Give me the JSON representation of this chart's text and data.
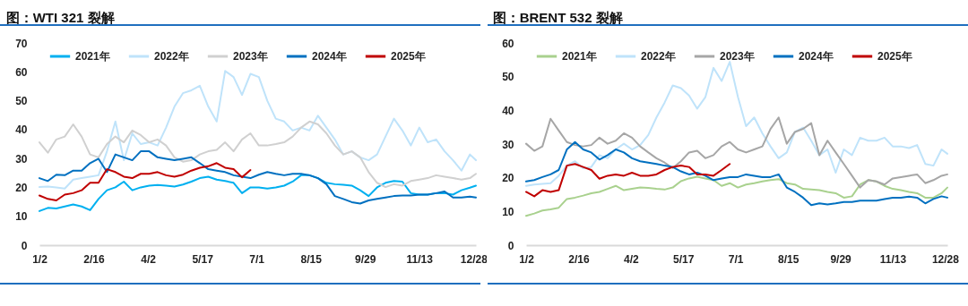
{
  "chart_data": [
    {
      "type": "line",
      "title": "图：WTI 321 裂解",
      "legend": "top",
      "x": [
        "--01-02",
        "--01-09",
        "--01-16",
        "--01-23",
        "--01-30",
        "--02-06",
        "--02-13",
        "--02-20",
        "--02-27",
        "--03-06",
        "--03-13",
        "--03-20",
        "--03-27",
        "--04-03",
        "--04-10",
        "--04-17",
        "--04-24",
        "--05-01",
        "--05-08",
        "--05-15",
        "--05-22",
        "--05-29",
        "--06-05",
        "--06-12",
        "--06-19",
        "--06-26",
        "--07-03",
        "--07-10",
        "--07-17",
        "--07-24",
        "--07-31",
        "--08-07",
        "--08-14",
        "--08-21",
        "--08-28",
        "--09-04",
        "--09-11",
        "--09-18",
        "--09-25",
        "--10-02",
        "--10-09",
        "--10-16",
        "--10-23",
        "--10-30",
        "--11-06",
        "--11-13",
        "--11-20",
        "--11-27",
        "--12-04",
        "--12-11",
        "--12-18",
        "--12-25",
        "--12-30"
      ],
      "xlim": [
        "--01-02",
        "--12-30"
      ],
      "xticks": [
        {
          "value": "--01-02",
          "label": "1/2"
        },
        {
          "value": "--02-16",
          "label": "2/16"
        },
        {
          "value": "--04-02",
          "label": "4/2"
        },
        {
          "value": "--05-17",
          "label": "5/17"
        },
        {
          "value": "--07-01",
          "label": "7/1"
        },
        {
          "value": "--08-15",
          "label": "8/15"
        },
        {
          "value": "--09-29",
          "label": "9/29"
        },
        {
          "value": "--11-13",
          "label": "11/13"
        },
        {
          "value": "--12-28",
          "label": "12/28"
        }
      ],
      "ylim": [
        0,
        70
      ],
      "yticks": [
        0,
        10,
        20,
        30,
        40,
        50,
        60,
        70
      ],
      "series": [
        {
          "name": "2021年",
          "color": "#00b0f0",
          "values": [
            11.8,
            12.9,
            12.7,
            13.4,
            14.1,
            13.4,
            12.1,
            16,
            19,
            20,
            22,
            19,
            20,
            20.6,
            20.8,
            20.6,
            20.3,
            21,
            22,
            23.2,
            23.7,
            22.7,
            22.2,
            21.6,
            18,
            20,
            20,
            19.6,
            20,
            20.6,
            22,
            24.2,
            24.2,
            23.2,
            21.6,
            21.1,
            20.9,
            20.6,
            19,
            17,
            20,
            21.6,
            22.2,
            22,
            18,
            17.5,
            17.5,
            18,
            18,
            17.5,
            19,
            19.9,
            20.6
          ]
        },
        {
          "name": "2022年",
          "color": "#bfe3fa",
          "values": [
            20.1,
            20.3,
            20,
            19.6,
            22.7,
            23.2,
            23.7,
            24.2,
            32.5,
            42.8,
            29.4,
            38.7,
            35,
            35.6,
            34.5,
            40.7,
            48,
            52.6,
            53.6,
            55.2,
            48,
            42.8,
            60.3,
            58.2,
            52,
            59.3,
            58.2,
            50,
            43.8,
            42.8,
            39.7,
            40.7,
            39.7,
            44.8,
            40.7,
            36.6,
            31.4,
            32.5,
            30.4,
            29.4,
            31.4,
            37.6,
            43.8,
            39.7,
            34.5,
            40.7,
            35.6,
            36.6,
            32.5,
            29.4,
            25.8,
            31.4,
            29.4
          ]
        },
        {
          "name": "2023年",
          "color": "#d0d0d0",
          "values": [
            35.6,
            32,
            36.6,
            37.6,
            41.8,
            37.6,
            31.4,
            30.4,
            35,
            37.6,
            35.6,
            39.7,
            38.1,
            35.6,
            36.6,
            34.5,
            30.4,
            28.9,
            29.4,
            31.4,
            32.5,
            33,
            35.6,
            32.5,
            36.6,
            38.7,
            34.5,
            34.5,
            35,
            35.6,
            37.6,
            40.7,
            42.8,
            41.8,
            38.7,
            34.5,
            31.4,
            32.5,
            30.4,
            25.3,
            21.6,
            20.1,
            21.1,
            20.6,
            22.2,
            22.7,
            23.2,
            24.2,
            23.7,
            23.2,
            22.7,
            23.2,
            24.7
          ]
        },
        {
          "name": "2024年",
          "color": "#0070c0",
          "values": [
            23.2,
            22.2,
            24.4,
            24.2,
            25.8,
            25.8,
            28.4,
            29.9,
            25.3,
            31.4,
            30.4,
            29.4,
            32.5,
            32.5,
            30.4,
            29.9,
            29.4,
            29.9,
            30.4,
            28.4,
            26.3,
            25.8,
            25.3,
            24.2,
            23.7,
            23.2,
            24.4,
            25.3,
            24.7,
            24.2,
            24.7,
            24.7,
            24.2,
            23.2,
            21.1,
            17,
            16,
            14.9,
            14.4,
            15.5,
            16,
            16.5,
            17,
            17.2,
            17.2,
            17.5,
            17.5,
            18,
            18.6,
            16.5,
            16.5,
            16.8,
            16.5
          ]
        },
        {
          "name": "2025年",
          "color": "#c00000",
          "values": [
            17.2,
            16,
            15.5,
            17.5,
            18,
            19,
            21.6,
            21.6,
            26.3,
            25.3,
            23.7,
            23.2,
            24.7,
            24.7,
            25.3,
            24.2,
            23.7,
            24.4,
            25.8,
            26.8,
            27.3,
            28.4,
            26.8,
            26.3,
            23.5,
            26,
            null,
            null,
            null,
            null,
            null,
            null,
            null,
            null,
            null,
            null,
            null,
            null,
            null,
            null,
            null,
            null,
            null,
            null,
            null,
            null,
            null,
            null,
            null,
            null,
            null,
            null,
            null
          ]
        }
      ]
    },
    {
      "type": "line",
      "title": "图：BRENT 532 裂解",
      "legend": "top",
      "x": [
        "--01-02",
        "--01-09",
        "--01-16",
        "--01-23",
        "--01-30",
        "--02-06",
        "--02-13",
        "--02-20",
        "--02-27",
        "--03-06",
        "--03-13",
        "--03-20",
        "--03-27",
        "--04-03",
        "--04-10",
        "--04-17",
        "--04-24",
        "--05-01",
        "--05-08",
        "--05-15",
        "--05-22",
        "--05-29",
        "--06-05",
        "--06-12",
        "--06-19",
        "--06-26",
        "--07-03",
        "--07-10",
        "--07-17",
        "--07-24",
        "--07-31",
        "--08-07",
        "--08-14",
        "--08-21",
        "--08-28",
        "--09-04",
        "--09-11",
        "--09-18",
        "--09-25",
        "--10-02",
        "--10-09",
        "--10-16",
        "--10-23",
        "--10-30",
        "--11-06",
        "--11-13",
        "--11-20",
        "--11-27",
        "--12-04",
        "--12-11",
        "--12-18",
        "--12-25",
        "--12-30"
      ],
      "xlim": [
        "--01-02",
        "--12-30"
      ],
      "xticks": [
        {
          "value": "--01-02",
          "label": "1/2"
        },
        {
          "value": "--02-16",
          "label": "2/16"
        },
        {
          "value": "--04-02",
          "label": "4/2"
        },
        {
          "value": "--05-17",
          "label": "5/17"
        },
        {
          "value": "--07-01",
          "label": "7/1"
        },
        {
          "value": "--08-15",
          "label": "8/15"
        },
        {
          "value": "--09-29",
          "label": "9/29"
        },
        {
          "value": "--11-13",
          "label": "11/13"
        },
        {
          "value": "--12-28",
          "label": "12/28"
        }
      ],
      "ylim": [
        0,
        60
      ],
      "yticks": [
        0,
        10,
        20,
        30,
        40,
        50,
        60
      ],
      "series": [
        {
          "name": "2021年",
          "color": "#a9d18e",
          "values": [
            8.7,
            9.4,
            10.3,
            10.6,
            11.1,
            13.7,
            14.1,
            14.7,
            15.4,
            15.8,
            16.7,
            17.6,
            16.3,
            16.7,
            17.1,
            17,
            16.7,
            16.5,
            17.1,
            19,
            19.8,
            20.3,
            19.8,
            19.3,
            17.6,
            18.4,
            17.1,
            18,
            18.4,
            18.9,
            19.3,
            19.6,
            18.4,
            18,
            16.7,
            16.5,
            16.3,
            15.8,
            15.4,
            14.1,
            14.5,
            18,
            19.3,
            18.9,
            17.6,
            16.7,
            16.3,
            15.8,
            15.4,
            14.1,
            14.1,
            15.4,
            17.1
          ]
        },
        {
          "name": "2022年",
          "color": "#bfe3fa",
          "values": [
            17.6,
            18,
            18.2,
            18.4,
            20.6,
            23.6,
            24.9,
            22.8,
            23.2,
            26.7,
            25.8,
            28.4,
            30.1,
            28.4,
            29.7,
            32.7,
            37.9,
            42.3,
            47.4,
            46.6,
            44.4,
            40.5,
            43.9,
            52.6,
            48.7,
            54.4,
            44,
            35.3,
            37.9,
            33.2,
            29.3,
            25.8,
            27.5,
            33.6,
            34.9,
            31,
            26.7,
            28.4,
            21.5,
            28.4,
            26.7,
            31.9,
            31,
            31,
            31.9,
            29.3,
            29.3,
            28.8,
            29.7,
            24.1,
            23.6,
            28.4,
            27.1
          ]
        },
        {
          "name": "2023年",
          "color": "#a6a6a6",
          "values": [
            30.1,
            28,
            29.3,
            37.5,
            34,
            30.6,
            29.7,
            29.3,
            29.7,
            31.9,
            30.1,
            31,
            33.2,
            31.9,
            29.3,
            27.5,
            25.8,
            24.5,
            22.9,
            24.9,
            27.5,
            28,
            25.8,
            26.7,
            29.3,
            30.6,
            28.4,
            27.5,
            28.4,
            29.3,
            34.5,
            37.9,
            30.1,
            33.6,
            34.5,
            36.2,
            26.7,
            31,
            27.5,
            24.1,
            20.6,
            17.1,
            19.3,
            18.9,
            18,
            19.8,
            20.2,
            20.6,
            21,
            18.4,
            19.3,
            20.6,
            21
          ]
        },
        {
          "name": "2024年",
          "color": "#0070c0",
          "values": [
            18.9,
            19.3,
            20.2,
            21,
            22.3,
            28.4,
            30.6,
            28.4,
            27.5,
            25.4,
            26.7,
            28.4,
            27.5,
            25.8,
            24.9,
            24.5,
            24.1,
            23.6,
            23.2,
            21.9,
            21,
            21.5,
            20.6,
            19.3,
            19.8,
            20.2,
            20.2,
            21,
            20.6,
            20.2,
            20.2,
            21,
            17.1,
            15.8,
            14.1,
            11.9,
            12.4,
            12.1,
            12.4,
            12.8,
            12.8,
            13.2,
            13.2,
            13.2,
            13.7,
            14.1,
            14.1,
            14.4,
            14.1,
            12.4,
            13.7,
            14.5,
            14.1
          ]
        },
        {
          "name": "2025年",
          "color": "#c00000",
          "values": [
            15.8,
            14.5,
            16.3,
            15.8,
            16.3,
            23.6,
            24.1,
            23.2,
            22.3,
            19.7,
            20.6,
            21,
            20.6,
            21.5,
            20.6,
            20.6,
            21,
            22.3,
            23.2,
            23.6,
            23.2,
            21,
            21,
            20.6,
            22.3,
            24.1,
            null,
            null,
            null,
            null,
            null,
            null,
            null,
            null,
            null,
            null,
            null,
            null,
            null,
            null,
            null,
            null,
            null,
            null,
            null,
            null,
            null,
            null,
            null,
            null,
            null,
            null,
            null
          ]
        }
      ]
    }
  ]
}
